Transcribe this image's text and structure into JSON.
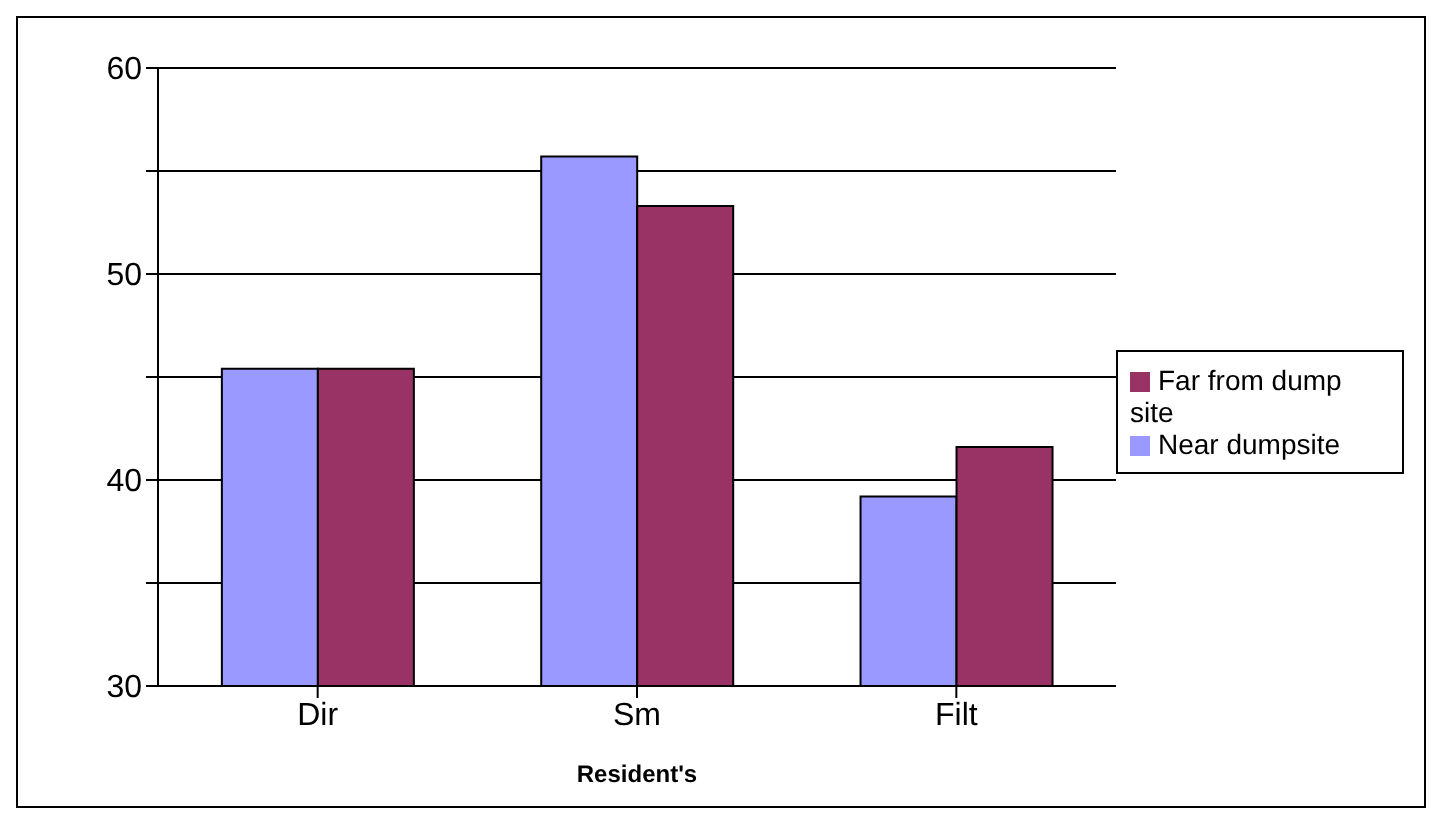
{
  "chart_data": {
    "type": "bar",
    "categories": [
      "Dir",
      "Sm",
      "Filt"
    ],
    "xlabel": "Resident's",
    "series": [
      {
        "name": "Near dumpsite",
        "color": "#9999ff",
        "values": [
          45.4,
          55.7,
          39.2
        ]
      },
      {
        "name": "Far from dump site",
        "color": "#993366",
        "values": [
          45.4,
          53.3,
          41.6
        ]
      }
    ],
    "ylim": [
      30,
      60
    ],
    "yticks": [
      30,
      {
        "value": 35,
        "label": null
      },
      40,
      {
        "value": 45,
        "label": null
      },
      50,
      {
        "value": 55,
        "label": null
      },
      60
    ],
    "grid": "y",
    "legend": "right"
  }
}
